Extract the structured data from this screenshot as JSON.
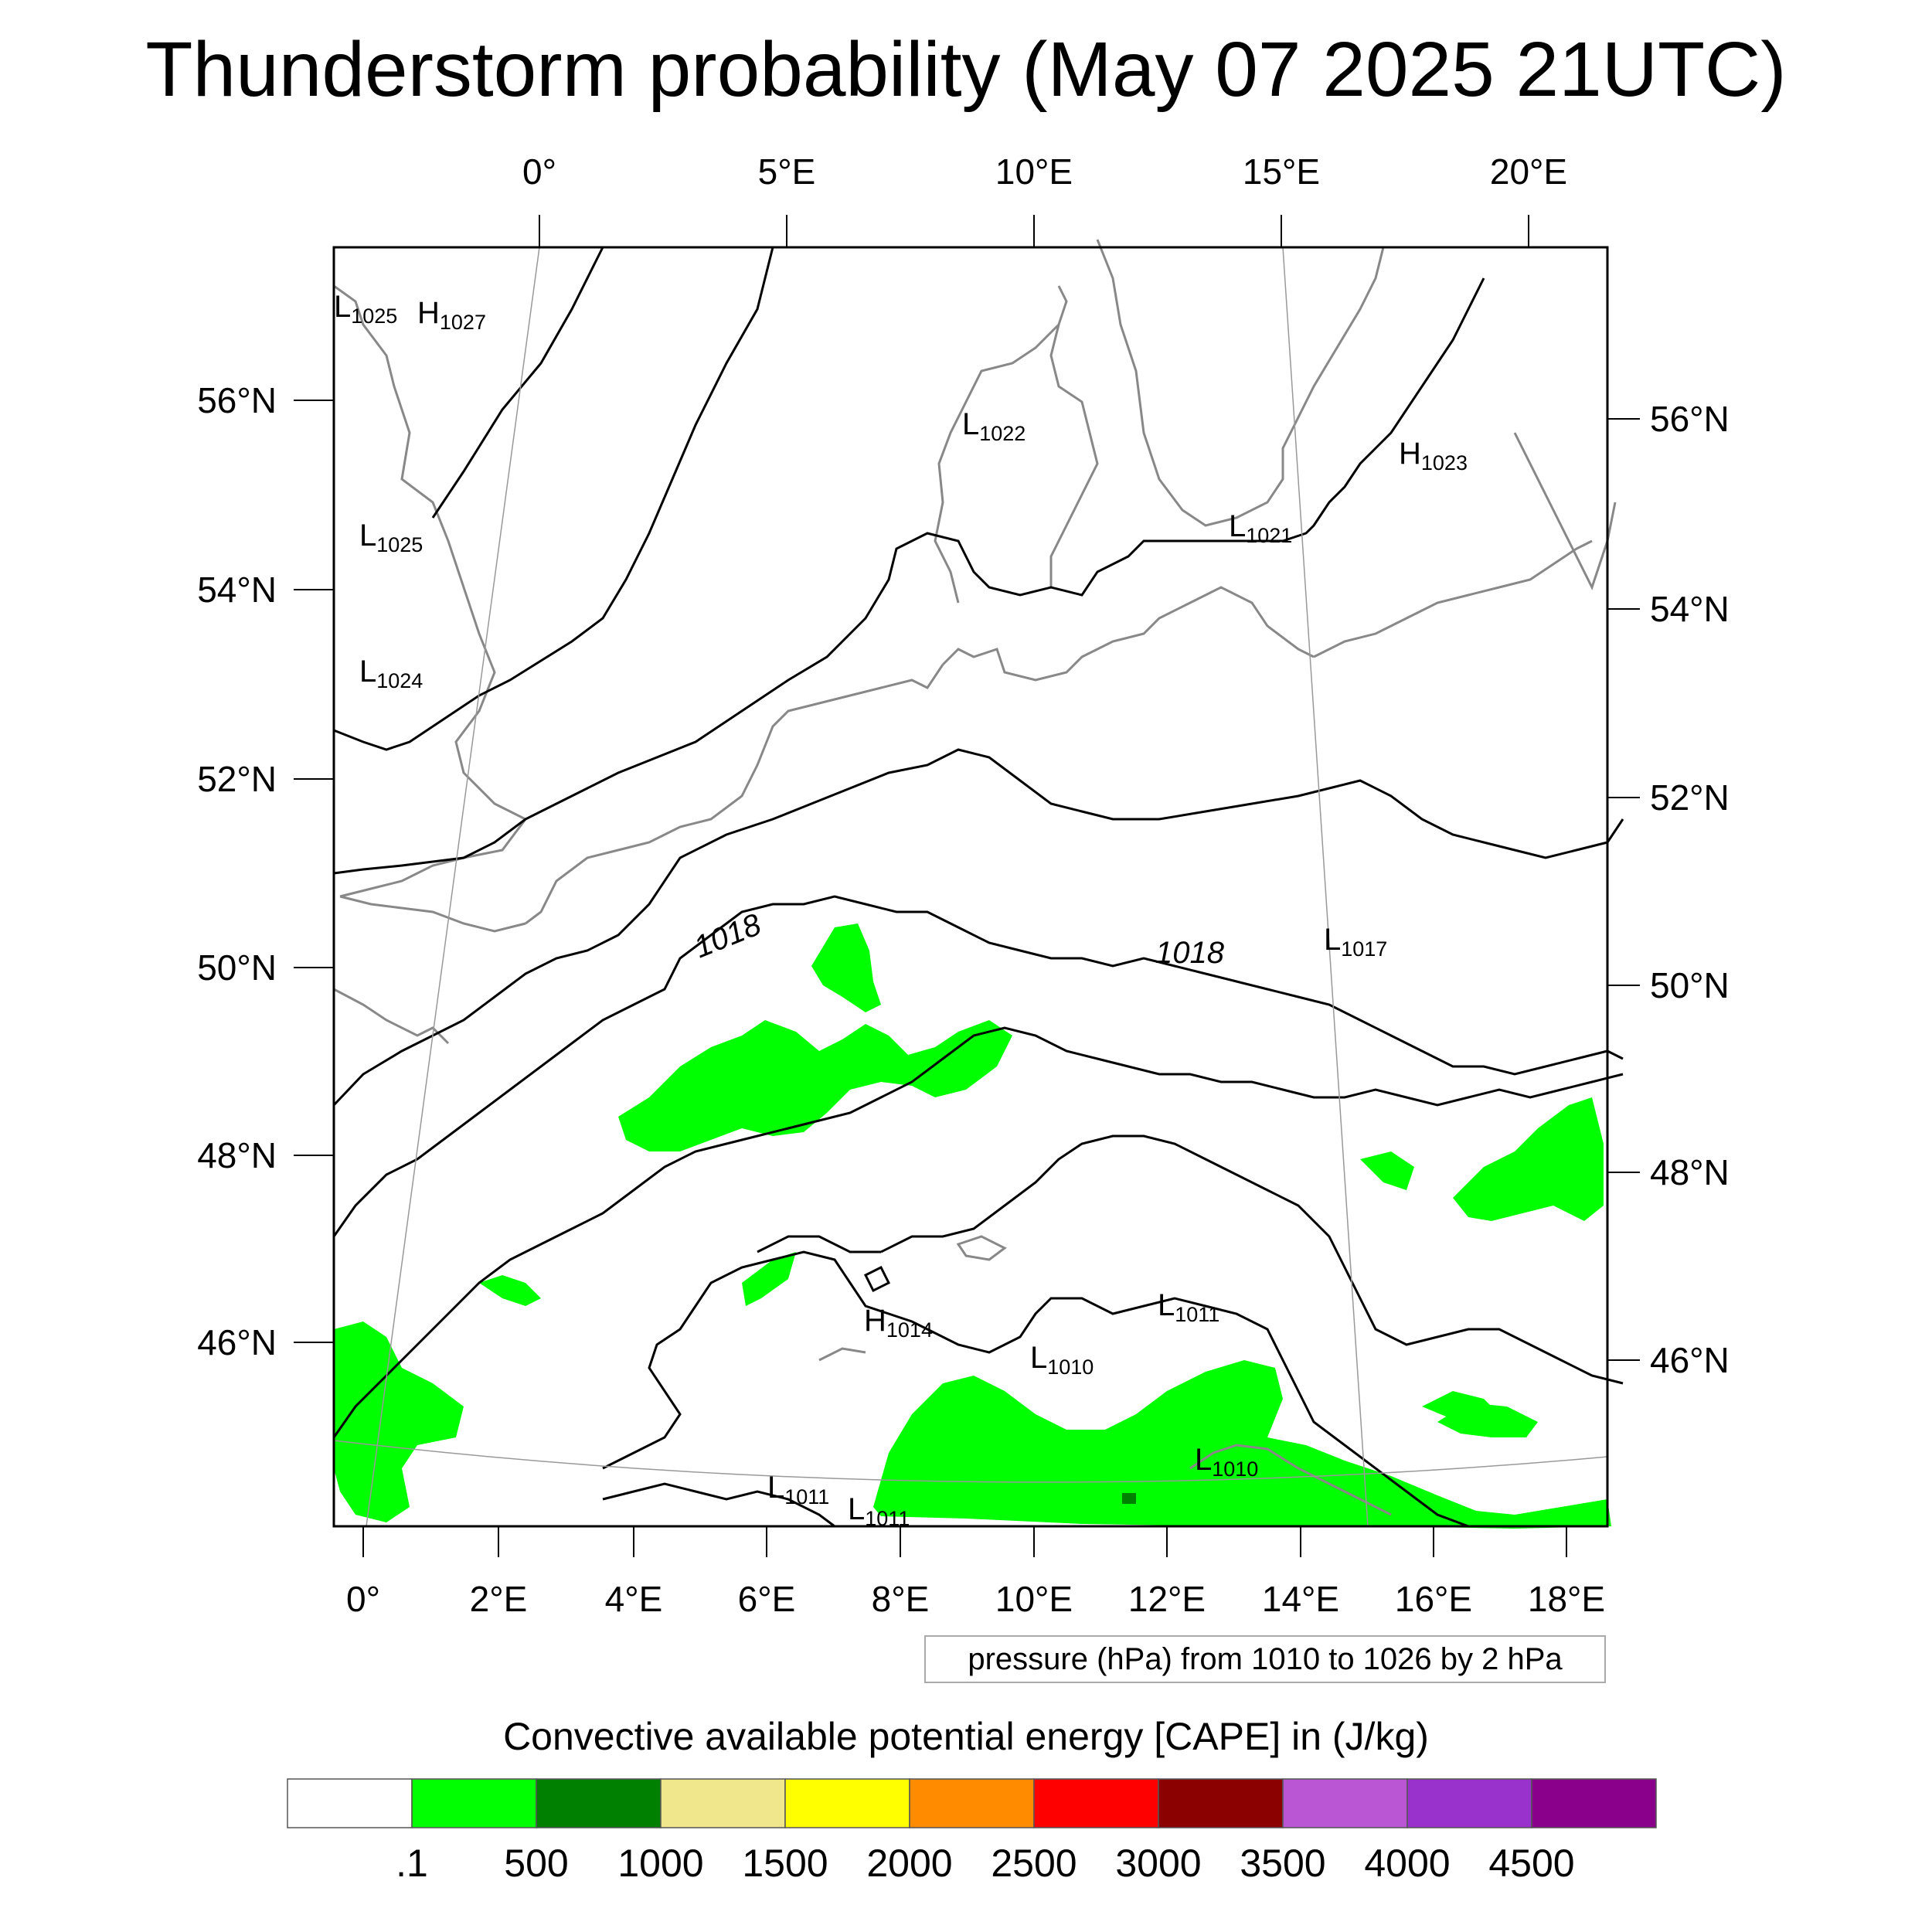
{
  "title": "Thunderstorm probability (May 07 2025 21UTC)",
  "map": {
    "top_lon_labels": [
      "0°",
      "5°E",
      "10°E",
      "15°E",
      "20°E"
    ],
    "bottom_lon_labels": [
      "0°",
      "2°E",
      "4°E",
      "6°E",
      "8°E",
      "10°E",
      "12°E",
      "14°E",
      "16°E",
      "18°E"
    ],
    "left_lat_labels": [
      "56°N",
      "54°N",
      "52°N",
      "50°N",
      "48°N",
      "46°N"
    ],
    "right_lat_labels": [
      "56°N",
      "54°N",
      "52°N",
      "50°N",
      "48°N",
      "46°N"
    ],
    "pressure_centers": [
      {
        "type": "L",
        "value": "1025"
      },
      {
        "type": "H",
        "value": "1027"
      },
      {
        "type": "L",
        "value": "1025"
      },
      {
        "type": "L",
        "value": "1024"
      },
      {
        "type": "L",
        "value": "1022"
      },
      {
        "type": "L",
        "value": "1021"
      },
      {
        "type": "H",
        "value": "1023"
      },
      {
        "type": "L",
        "value": "1017"
      },
      {
        "type": "H",
        "value": "1014"
      },
      {
        "type": "L",
        "value": "1011"
      },
      {
        "type": "L",
        "value": "1010"
      },
      {
        "type": "L",
        "value": "1010"
      },
      {
        "type": "L",
        "value": "1011"
      },
      {
        "type": "L",
        "value": "1011"
      }
    ],
    "isobar_labels": [
      "1018",
      "1018"
    ],
    "colors": {
      "cape_green": "#00ff00",
      "dark_green": "#008000",
      "coast": "#888888",
      "isobar": "#000000"
    }
  },
  "pressure_info": "pressure (hPa) from 1010 to 1026 by 2 hPa",
  "colorbar": {
    "title": "Convective available potential energy [CAPE] in (J/kg)",
    "colors": [
      "#ffffff",
      "#00ff00",
      "#008000",
      "#f0e68c",
      "#ffff00",
      "#ff8c00",
      "#ff0000",
      "#8b0000",
      "#ba55d3",
      "#9932cc",
      "#8b008b"
    ],
    "labels": [
      ".1",
      "500",
      "1000",
      "1500",
      "2000",
      "2500",
      "3000",
      "3500",
      "4000",
      "4500"
    ]
  }
}
